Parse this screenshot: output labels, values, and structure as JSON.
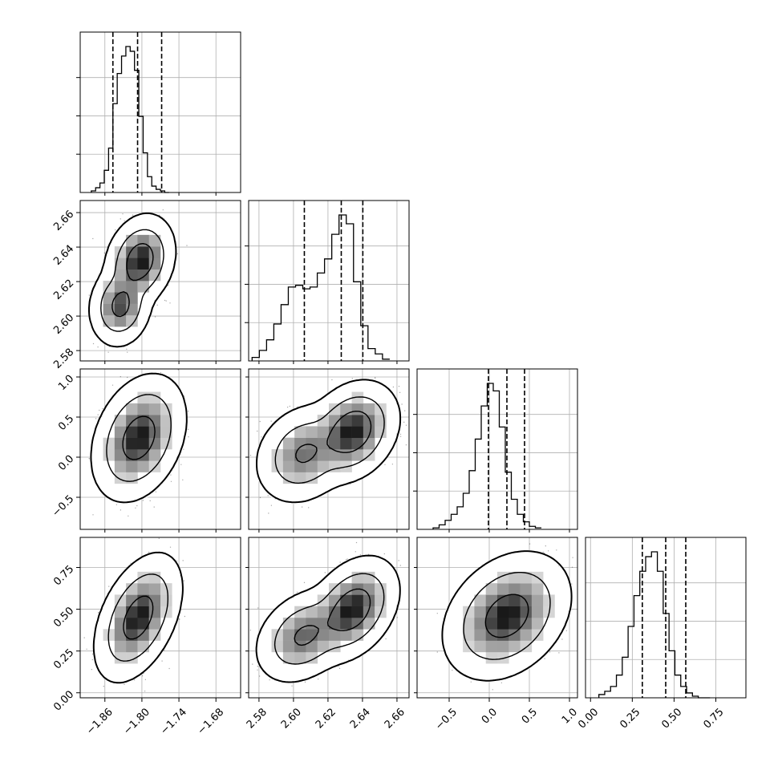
{
  "chart_data": {
    "type": "corner",
    "variables": 4,
    "colors": {
      "line": "#000000",
      "grid": "#b0b0b0",
      "density": "#000000"
    },
    "grid": true,
    "ranges": [
      {
        "min": -1.9,
        "max": -1.64,
        "ticks": [
          "−1.86",
          "−1.80",
          "−1.74",
          "−1.68"
        ],
        "tick_values": [
          -1.86,
          -1.8,
          -1.74,
          -1.68
        ]
      },
      {
        "min": 2.574,
        "max": 2.667,
        "ticks": [
          "2.58",
          "2.60",
          "2.62",
          "2.64",
          "2.66"
        ],
        "tick_values": [
          2.58,
          2.6,
          2.62,
          2.64,
          2.66
        ]
      },
      {
        "min": -0.9,
        "max": 1.1,
        "ticks": [
          "−0.5",
          "0.0",
          "0.5",
          "1.0"
        ],
        "tick_values": [
          -0.5,
          0.0,
          0.5,
          1.0
        ]
      },
      {
        "min": -0.03,
        "max": 0.93,
        "ticks": [
          "0.00",
          "0.25",
          "0.50",
          "0.75"
        ],
        "tick_values": [
          0.0,
          0.25,
          0.5,
          0.75
        ]
      }
    ],
    "histograms": [
      {
        "variable": 0,
        "bin_start": -1.882,
        "bin_width": 0.007,
        "counts": [
          1,
          3,
          6,
          14,
          28,
          56,
          75,
          86,
          92,
          89,
          77,
          48,
          25,
          10,
          4,
          2,
          1,
          0
        ],
        "quantiles": [
          -1.847,
          -1.807,
          -1.768
        ]
      },
      {
        "variable": 1,
        "bin_start": 2.576,
        "bin_width": 0.0042,
        "counts": [
          2,
          6,
          12,
          21,
          32,
          42,
          43,
          41,
          42,
          50,
          58,
          72,
          83,
          78,
          45,
          20,
          7,
          4,
          1
        ],
        "quantiles": [
          2.6063,
          2.6277,
          2.6402
        ]
      },
      {
        "variable": 2,
        "bin_start": -0.7,
        "bin_width": 0.075,
        "counts": [
          1,
          3,
          6,
          10,
          15,
          24,
          39,
          60,
          82,
          97,
          92,
          68,
          38,
          20,
          10,
          5,
          2,
          1
        ],
        "quantiles": [
          -0.01,
          0.22,
          0.44
        ]
      },
      {
        "variable": 3,
        "bin_start": 0.05,
        "bin_width": 0.035,
        "counts": [
          2,
          4,
          7,
          14,
          25,
          44,
          63,
          78,
          87,
          90,
          78,
          52,
          29,
          14,
          7,
          3,
          1,
          0,
          0
        ],
        "quantiles": [
          0.31,
          0.45,
          0.57
        ]
      }
    ],
    "joint": [
      {
        "x": 0,
        "y": 1,
        "components": [
          {
            "mx": -1.803,
            "my": 2.632,
            "sx": 0.02,
            "sy": 0.0095,
            "rho": 0.2,
            "w": 0.62
          },
          {
            "mx": -1.835,
            "my": 2.606,
            "sx": 0.018,
            "sy": 0.0085,
            "rho": 0.1,
            "w": 0.38
          }
        ]
      },
      {
        "x": 0,
        "y": 2,
        "components": [
          {
            "mx": -1.805,
            "my": 0.24,
            "sx": 0.026,
            "sy": 0.27,
            "rho": 0.3,
            "w": 1.0
          }
        ]
      },
      {
        "x": 1,
        "y": 2,
        "components": [
          {
            "mx": 2.634,
            "my": 0.32,
            "sx": 0.0095,
            "sy": 0.22,
            "rho": 0.25,
            "w": 0.62
          },
          {
            "mx": 2.606,
            "my": 0.04,
            "sx": 0.01,
            "sy": 0.22,
            "rho": 0.2,
            "w": 0.38
          }
        ]
      },
      {
        "x": 0,
        "y": 3,
        "components": [
          {
            "mx": -1.806,
            "my": 0.45,
            "sx": 0.024,
            "sy": 0.13,
            "rho": 0.45,
            "w": 1.0
          }
        ]
      },
      {
        "x": 1,
        "y": 3,
        "components": [
          {
            "mx": 2.634,
            "my": 0.5,
            "sx": 0.0095,
            "sy": 0.11,
            "rho": 0.35,
            "w": 0.62
          },
          {
            "mx": 2.606,
            "my": 0.34,
            "sx": 0.01,
            "sy": 0.1,
            "rho": 0.3,
            "w": 0.38
          }
        ]
      },
      {
        "x": 2,
        "y": 3,
        "components": [
          {
            "mx": 0.22,
            "my": 0.46,
            "sx": 0.27,
            "sy": 0.13,
            "rho": 0.3,
            "w": 1.0
          }
        ]
      }
    ],
    "contour_levels": [
      0.393,
      0.865,
      0.989
    ]
  }
}
